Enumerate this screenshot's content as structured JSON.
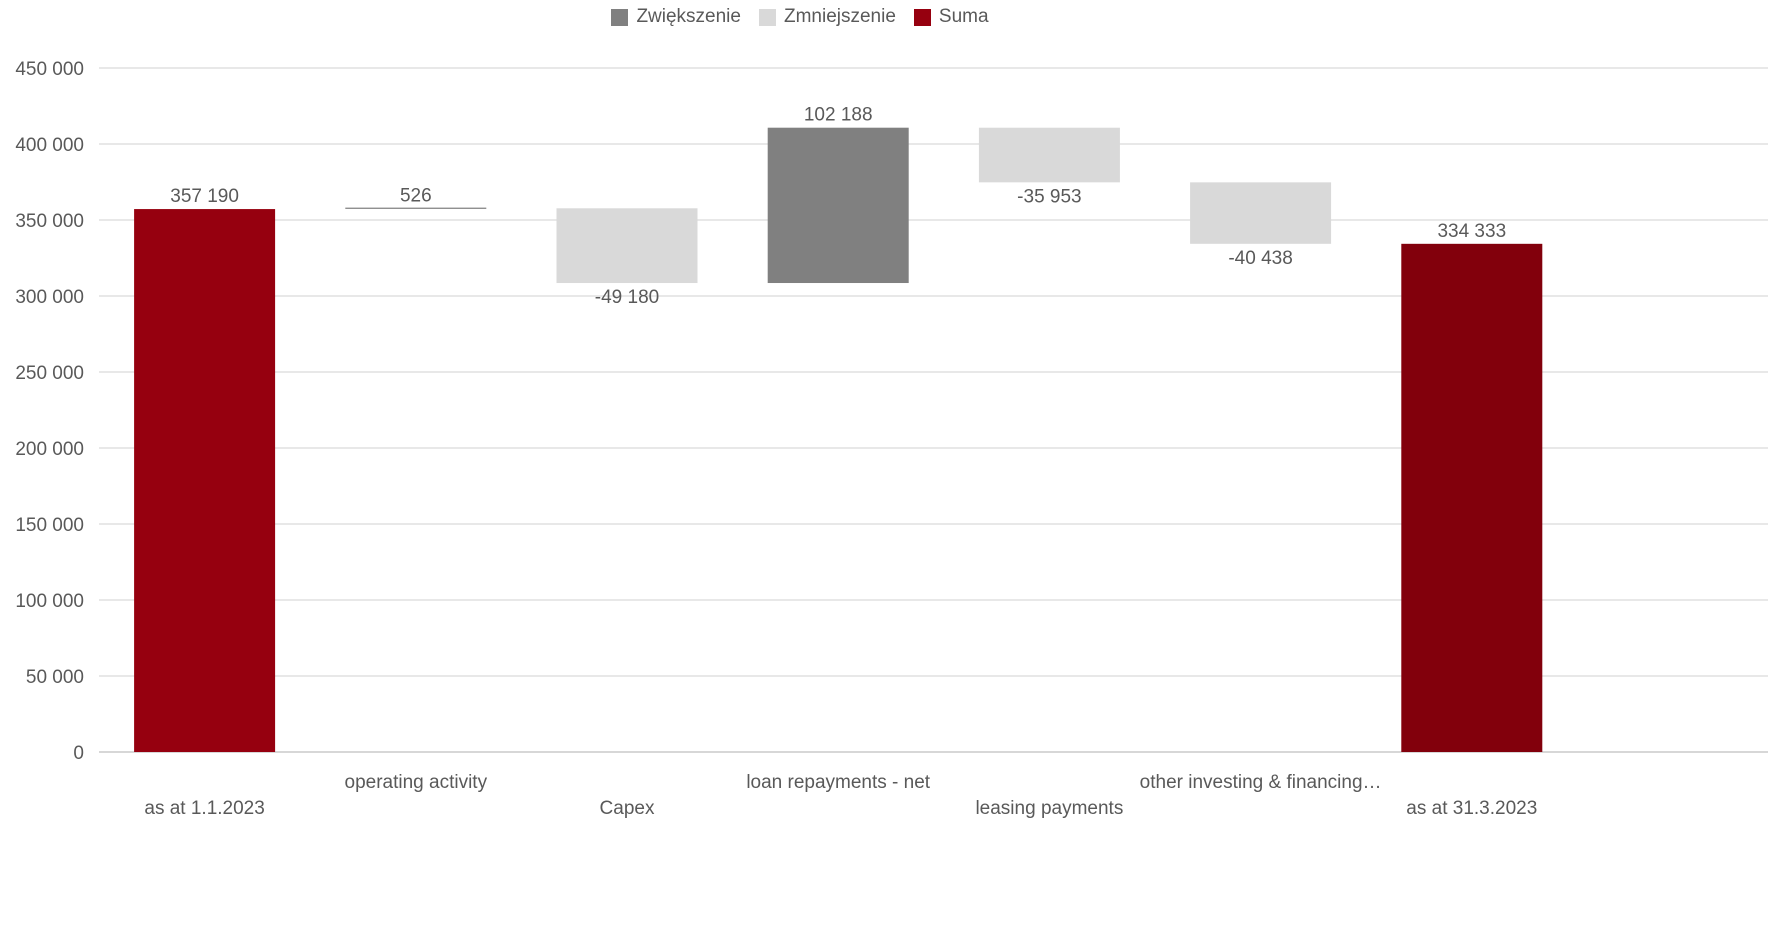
{
  "chart_data": {
    "type": "waterfall",
    "legend": [
      {
        "name": "Zwiększenie",
        "color": "#808080"
      },
      {
        "name": "Zmniejszenie",
        "color": "#D9D9D9"
      },
      {
        "name": "Suma",
        "color": "#96000F"
      }
    ],
    "legend_position": "top",
    "categories": [
      "as at 1.1.2023",
      "operating activity",
      "Capex",
      "loan repayments - net",
      "leasing payments",
      "other investing & financing…",
      "as at 31.3.2023"
    ],
    "values": [
      357190,
      526,
      -49180,
      102188,
      -35953,
      -40438,
      334333
    ],
    "value_labels": [
      "357 190",
      "526",
      "-49 180",
      "102 188",
      "-35 953",
      "-40 438",
      "334 333"
    ],
    "kinds": [
      "total",
      "increase",
      "decrease",
      "increase",
      "decrease",
      "decrease",
      "total"
    ],
    "colors": {
      "increase": "#808080",
      "decrease": "#D9D9D9",
      "total_start": "#96000F",
      "total_end": "#82000C",
      "connector": "#808080"
    },
    "ylim": [
      0,
      450000
    ],
    "yticks": [
      0,
      50000,
      100000,
      150000,
      200000,
      250000,
      300000,
      350000,
      400000,
      450000
    ],
    "ytick_labels": [
      "0",
      "50 000",
      "100 000",
      "150 000",
      "200 000",
      "250 000",
      "300 000",
      "350 000",
      "400 000",
      "450 000"
    ],
    "grid": true
  }
}
